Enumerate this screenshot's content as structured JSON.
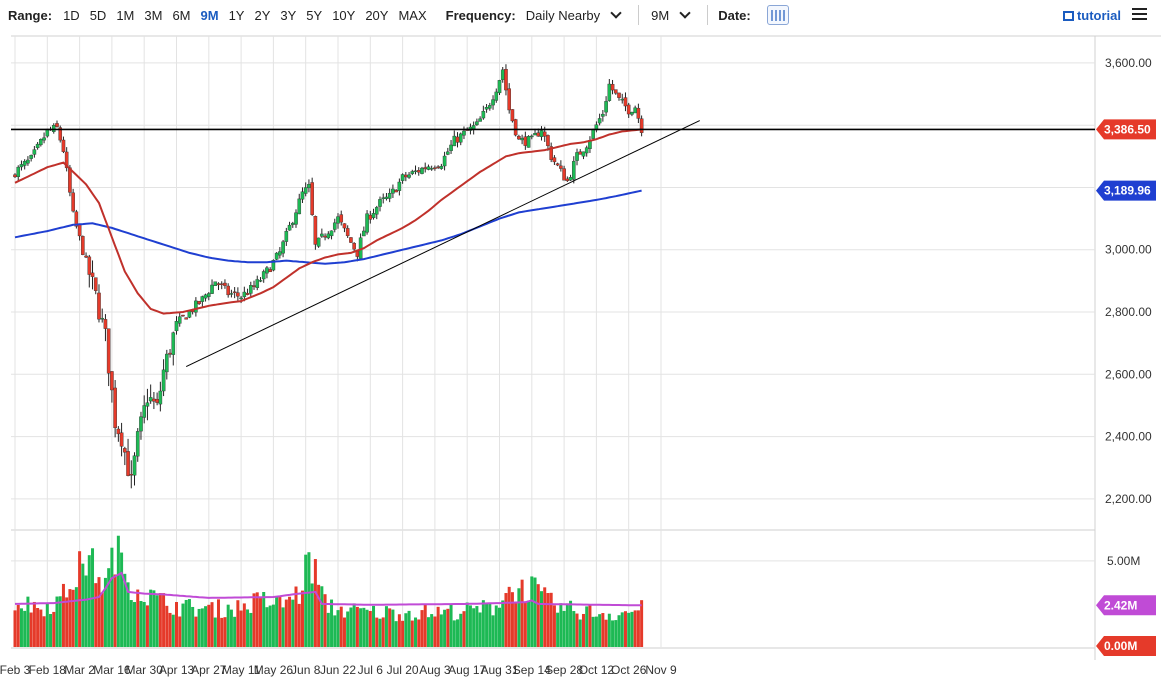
{
  "toolbar": {
    "range_label": "Range:",
    "ranges": [
      "1D",
      "5D",
      "1M",
      "3M",
      "6M",
      "9M",
      "1Y",
      "2Y",
      "3Y",
      "5Y",
      "10Y",
      "20Y",
      "MAX"
    ],
    "active_range": "9M",
    "frequency_label": "Frequency:",
    "frequency_value": "Daily Nearby",
    "period_value": "9M",
    "date_label": "Date:",
    "tutorial_label": "tutorial"
  },
  "colors": {
    "up": "#1db954",
    "down": "#e53a2a",
    "ma_short": "#c0312b",
    "ma_long": "#1f3fd1",
    "volume_avg": "#c04bd6",
    "horizontal_line": "#000000",
    "trendline": "#000000",
    "grid": "#e3e3e3"
  },
  "chart_data": [
    {
      "type": "candlestick",
      "title": "",
      "ylim": [
        2100,
        3680
      ],
      "yticks": [
        2200,
        2400,
        2600,
        2800,
        3000,
        3200,
        3400,
        3600
      ],
      "ytick_labels": [
        "2,200.00",
        "2,400.00",
        "2,600.00",
        "2,800.00",
        "3,000.00",
        "",
        "",
        "3,600.00"
      ],
      "x_tick_labels": [
        "Feb 3",
        "Feb 18",
        "Mar 2",
        "Mar 16",
        "Mar 30",
        "Apr 13",
        "Apr 27",
        "May 11",
        "May 26",
        "Jun 8",
        "Jun 22",
        "Jul 6",
        "Jul 20",
        "Aug 3",
        "Aug 17",
        "Aug 31",
        "Sep 14",
        "Sep 28",
        "Oct 12",
        "Oct 26",
        "Nov 9"
      ],
      "x_tick_index": [
        0,
        10,
        20,
        30,
        40,
        50,
        60,
        70,
        80,
        90,
        100,
        110,
        120,
        130,
        140,
        150,
        160,
        170,
        180,
        190,
        200
      ],
      "close_anchors": [
        [
          0,
          3250
        ],
        [
          5,
          3290
        ],
        [
          10,
          3380
        ],
        [
          13,
          3390
        ],
        [
          15,
          3320
        ],
        [
          18,
          3110
        ],
        [
          22,
          2960
        ],
        [
          25,
          2850
        ],
        [
          28,
          2720
        ],
        [
          31,
          2450
        ],
        [
          33,
          2400
        ],
        [
          36,
          2250
        ],
        [
          38,
          2390
        ],
        [
          41,
          2530
        ],
        [
          44,
          2490
        ],
        [
          46,
          2610
        ],
        [
          50,
          2760
        ],
        [
          54,
          2800
        ],
        [
          58,
          2840
        ],
        [
          62,
          2900
        ],
        [
          66,
          2860
        ],
        [
          70,
          2850
        ],
        [
          74,
          2880
        ],
        [
          78,
          2930
        ],
        [
          82,
          2990
        ],
        [
          86,
          3100
        ],
        [
          89,
          3180
        ],
        [
          91,
          3200
        ],
        [
          93,
          3010
        ],
        [
          96,
          3050
        ],
        [
          100,
          3100
        ],
        [
          103,
          3040
        ],
        [
          106,
          2990
        ],
        [
          109,
          3100
        ],
        [
          113,
          3150
        ],
        [
          116,
          3170
        ],
        [
          120,
          3230
        ],
        [
          124,
          3250
        ],
        [
          128,
          3270
        ],
        [
          132,
          3280
        ],
        [
          136,
          3350
        ],
        [
          140,
          3380
        ],
        [
          143,
          3400
        ],
        [
          146,
          3450
        ],
        [
          149,
          3520
        ],
        [
          151,
          3580
        ],
        [
          153,
          3450
        ],
        [
          156,
          3350
        ],
        [
          160,
          3350
        ],
        [
          163,
          3390
        ],
        [
          166,
          3300
        ],
        [
          169,
          3250
        ],
        [
          171,
          3220
        ],
        [
          174,
          3300
        ],
        [
          177,
          3340
        ],
        [
          180,
          3400
        ],
        [
          182,
          3440
        ],
        [
          184,
          3530
        ],
        [
          187,
          3480
        ],
        [
          190,
          3450
        ],
        [
          192,
          3460
        ],
        [
          194,
          3390
        ]
      ],
      "last_index": 194,
      "ma_short_anchors": [
        [
          0,
          3215
        ],
        [
          10,
          3265
        ],
        [
          15,
          3280
        ],
        [
          18,
          3250
        ],
        [
          22,
          3210
        ],
        [
          26,
          3150
        ],
        [
          30,
          3040
        ],
        [
          34,
          2930
        ],
        [
          38,
          2860
        ],
        [
          42,
          2810
        ],
        [
          46,
          2795
        ],
        [
          52,
          2800
        ],
        [
          56,
          2810
        ],
        [
          60,
          2820
        ],
        [
          66,
          2830
        ],
        [
          70,
          2835
        ],
        [
          76,
          2860
        ],
        [
          80,
          2880
        ],
        [
          84,
          2910
        ],
        [
          88,
          2940
        ],
        [
          92,
          2960
        ],
        [
          96,
          2975
        ],
        [
          100,
          2985
        ],
        [
          104,
          2990
        ],
        [
          108,
          3005
        ],
        [
          112,
          3030
        ],
        [
          116,
          3050
        ],
        [
          120,
          3070
        ],
        [
          124,
          3095
        ],
        [
          128,
          3125
        ],
        [
          132,
          3160
        ],
        [
          136,
          3190
        ],
        [
          140,
          3220
        ],
        [
          144,
          3250
        ],
        [
          148,
          3275
        ],
        [
          152,
          3300
        ],
        [
          156,
          3310
        ],
        [
          160,
          3315
        ],
        [
          164,
          3320
        ],
        [
          168,
          3330
        ],
        [
          172,
          3340
        ],
        [
          176,
          3345
        ],
        [
          180,
          3355
        ],
        [
          184,
          3370
        ],
        [
          188,
          3380
        ],
        [
          194,
          3386.5
        ]
      ],
      "ma_long_anchors": [
        [
          0,
          3040
        ],
        [
          10,
          3060
        ],
        [
          18,
          3080
        ],
        [
          24,
          3085
        ],
        [
          30,
          3070
        ],
        [
          36,
          3050
        ],
        [
          42,
          3030
        ],
        [
          48,
          3010
        ],
        [
          54,
          2990
        ],
        [
          60,
          2975
        ],
        [
          66,
          2965
        ],
        [
          72,
          2960
        ],
        [
          78,
          2960
        ],
        [
          84,
          2965
        ],
        [
          90,
          2960
        ],
        [
          96,
          2955
        ],
        [
          102,
          2960
        ],
        [
          108,
          2970
        ],
        [
          114,
          2985
        ],
        [
          120,
          3000
        ],
        [
          126,
          3015
        ],
        [
          132,
          3030
        ],
        [
          138,
          3050
        ],
        [
          144,
          3075
        ],
        [
          150,
          3100
        ],
        [
          156,
          3120
        ],
        [
          162,
          3130
        ],
        [
          168,
          3140
        ],
        [
          174,
          3150
        ],
        [
          180,
          3160
        ],
        [
          186,
          3172
        ],
        [
          194,
          3189.96
        ]
      ],
      "horizontal_level": 3386.5,
      "horizontal_label": "3,386.50",
      "ma_long_label": "3,189.96",
      "trendline": [
        [
          53,
          2625
        ],
        [
          212,
          3415
        ]
      ],
      "series": [
        {
          "name": "",
          "kind": "price candles"
        },
        {
          "name": "",
          "kind": "moving average (red)"
        },
        {
          "name": "",
          "kind": "moving average (blue)"
        }
      ]
    },
    {
      "type": "bar",
      "title": "",
      "ylim": [
        0,
        6500000
      ],
      "yticks": [
        5000000
      ],
      "ytick_labels": [
        "5.00M"
      ],
      "avg_label": "2.42M",
      "zero_label": "0.00M",
      "volume_anchors": [
        [
          0,
          2.6
        ],
        [
          8,
          2.3
        ],
        [
          14,
          2.7
        ],
        [
          18,
          3.9
        ],
        [
          22,
          5.1
        ],
        [
          25,
          4.5
        ],
        [
          28,
          3.5
        ],
        [
          31,
          5.6
        ],
        [
          33,
          4.9
        ],
        [
          36,
          3.6
        ],
        [
          40,
          3.1
        ],
        [
          46,
          2.6
        ],
        [
          52,
          2.3
        ],
        [
          60,
          2.2
        ],
        [
          70,
          2.3
        ],
        [
          76,
          2.7
        ],
        [
          82,
          2.5
        ],
        [
          88,
          3.1
        ],
        [
          91,
          5.1
        ],
        [
          93,
          4.3
        ],
        [
          96,
          2.5
        ],
        [
          100,
          2.2
        ],
        [
          110,
          2.0
        ],
        [
          120,
          2.0
        ],
        [
          130,
          2.0
        ],
        [
          140,
          2.1
        ],
        [
          148,
          2.3
        ],
        [
          152,
          3.2
        ],
        [
          156,
          3.3
        ],
        [
          160,
          3.5
        ],
        [
          163,
          2.9
        ],
        [
          168,
          2.3
        ],
        [
          174,
          2.1
        ],
        [
          180,
          2.0
        ],
        [
          186,
          1.9
        ],
        [
          194,
          2.2
        ]
      ],
      "avg_anchors": [
        [
          0,
          2.5
        ],
        [
          12,
          2.55
        ],
        [
          22,
          2.75
        ],
        [
          26,
          2.9
        ],
        [
          28,
          3.4
        ],
        [
          30,
          4.0
        ],
        [
          33,
          4.3
        ],
        [
          35,
          3.2
        ],
        [
          40,
          3.1
        ],
        [
          46,
          3.05
        ],
        [
          60,
          2.85
        ],
        [
          80,
          2.9
        ],
        [
          88,
          3.1
        ],
        [
          93,
          3.2
        ],
        [
          95,
          2.5
        ],
        [
          110,
          2.45
        ],
        [
          140,
          2.5
        ],
        [
          150,
          2.55
        ],
        [
          158,
          2.6
        ],
        [
          160,
          2.7
        ],
        [
          162,
          2.5
        ],
        [
          180,
          2.45
        ],
        [
          194,
          2.42
        ]
      ]
    }
  ]
}
